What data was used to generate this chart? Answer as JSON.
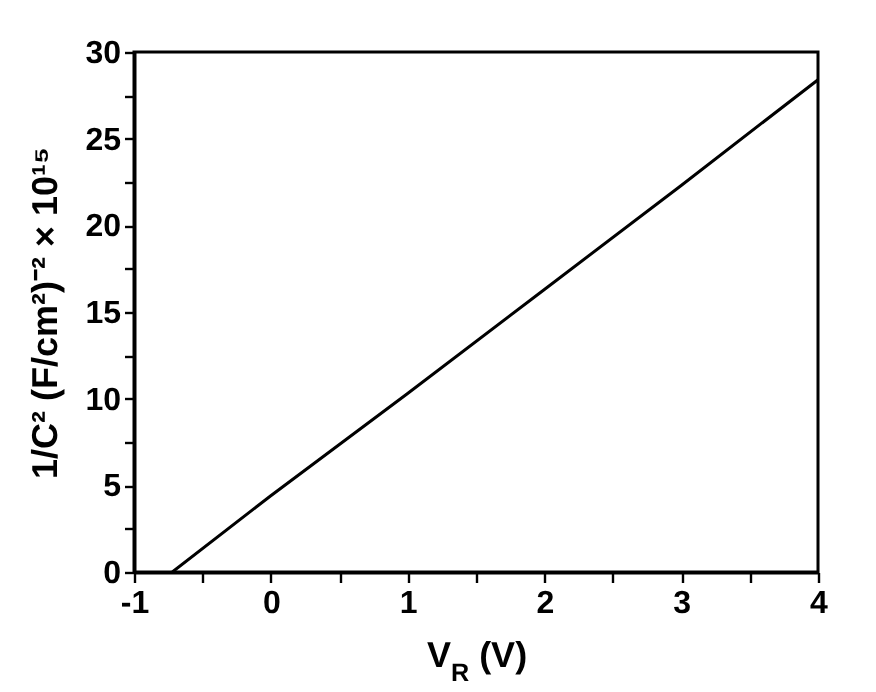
{
  "chart_data": {
    "type": "line",
    "x": [
      -0.72,
      0,
      1,
      2,
      3,
      4
    ],
    "series": [
      {
        "color": "#000000",
        "values": [
          0,
          4.4,
          10.3,
          16.3,
          22.3,
          28.4
        ]
      }
    ],
    "xlabel": "V$_{R}$ (V)",
    "ylabel": "1/C² (F/cm²)⁻² × 10¹⁵",
    "xlim": [
      -1,
      4
    ],
    "ylim": [
      0,
      30
    ],
    "xticks": [
      -1,
      {
        "value": -0.5,
        "label": null
      },
      0,
      {
        "value": 0.5,
        "label": null
      },
      1,
      {
        "value": 1.5,
        "label": null
      },
      2,
      {
        "value": 2.5,
        "label": null
      },
      3,
      {
        "value": 3.5,
        "label": null
      },
      4
    ],
    "yticks": [
      0,
      {
        "value": 2.5,
        "label": null
      },
      5,
      {
        "value": 7.5,
        "label": null
      },
      10,
      {
        "value": 12.5,
        "label": null
      },
      15,
      {
        "value": 17.5,
        "label": null
      },
      20,
      {
        "value": 22.5,
        "label": null
      },
      25,
      {
        "value": 27.5,
        "label": null
      },
      30
    ],
    "marker": "none",
    "line_style": "solid"
  }
}
